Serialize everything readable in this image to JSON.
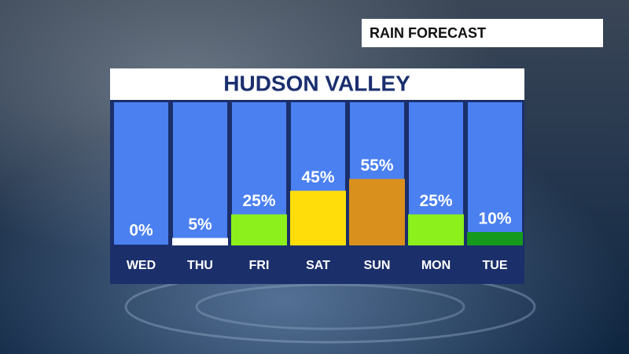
{
  "chart_data": {
    "type": "bar",
    "subtitle": "RAIN FORECAST",
    "title": "HUDSON VALLEY",
    "categories": [
      "WED",
      "THU",
      "FRI",
      "SAT",
      "SUN",
      "MON",
      "TUE"
    ],
    "values": [
      0,
      5,
      25,
      45,
      55,
      25,
      10
    ],
    "value_labels": [
      "0%",
      "5%",
      "25%",
      "45%",
      "55%",
      "25%",
      "10%"
    ],
    "colors": [
      "#ffffff",
      "#ffffff",
      "#8cf01c",
      "#ffdd0a",
      "#d9901c",
      "#8cf01c",
      "#169a1c"
    ]
  }
}
